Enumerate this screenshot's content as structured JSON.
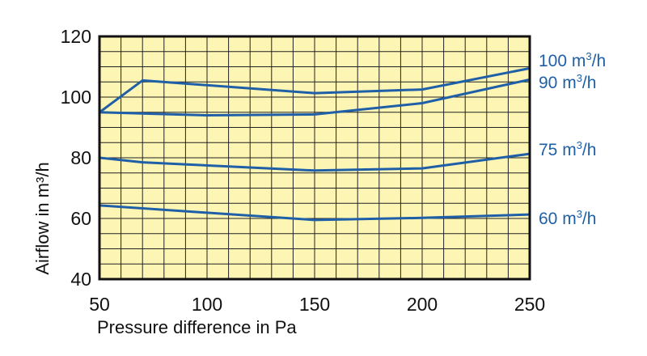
{
  "chart_data": {
    "type": "line",
    "xlabel": "Pressure difference in Pa",
    "ylabel": "Airflow in m³/h",
    "xlim": [
      50,
      250
    ],
    "ylim": [
      40,
      120
    ],
    "x_ticks": [
      "50",
      "100",
      "150",
      "200",
      "250"
    ],
    "y_ticks": [
      "40",
      "60",
      "80",
      "100",
      "120"
    ],
    "grid": true,
    "background_color": "#fdf5b4",
    "line_color": "#1f5fa8",
    "series": [
      {
        "name": "100 m³/h",
        "label_base": "100 m",
        "label_sup": "3",
        "label_tail": "/h",
        "points": [
          [
            50,
            95.0
          ],
          [
            70,
            105.5
          ],
          [
            150,
            101.3
          ],
          [
            200,
            102.5
          ],
          [
            250,
            109.5
          ]
        ]
      },
      {
        "name": "90 m³/h",
        "label_base": "90 m",
        "label_sup": "3",
        "label_tail": "/h",
        "points": [
          [
            50,
            95.0
          ],
          [
            100,
            94.0
          ],
          [
            150,
            94.3
          ],
          [
            200,
            98.0
          ],
          [
            250,
            105.8
          ]
        ]
      },
      {
        "name": "75 m³/h",
        "label_base": "75 m",
        "label_sup": "3",
        "label_tail": "/h",
        "points": [
          [
            50,
            80.0
          ],
          [
            70,
            78.5
          ],
          [
            150,
            75.8
          ],
          [
            200,
            76.5
          ],
          [
            250,
            81.3
          ]
        ]
      },
      {
        "name": "60 m³/h",
        "label_base": "60 m",
        "label_sup": "3",
        "label_tail": "/h",
        "points": [
          [
            50,
            64.3
          ],
          [
            150,
            59.5
          ],
          [
            200,
            60.2
          ],
          [
            250,
            61.3
          ]
        ]
      }
    ]
  }
}
